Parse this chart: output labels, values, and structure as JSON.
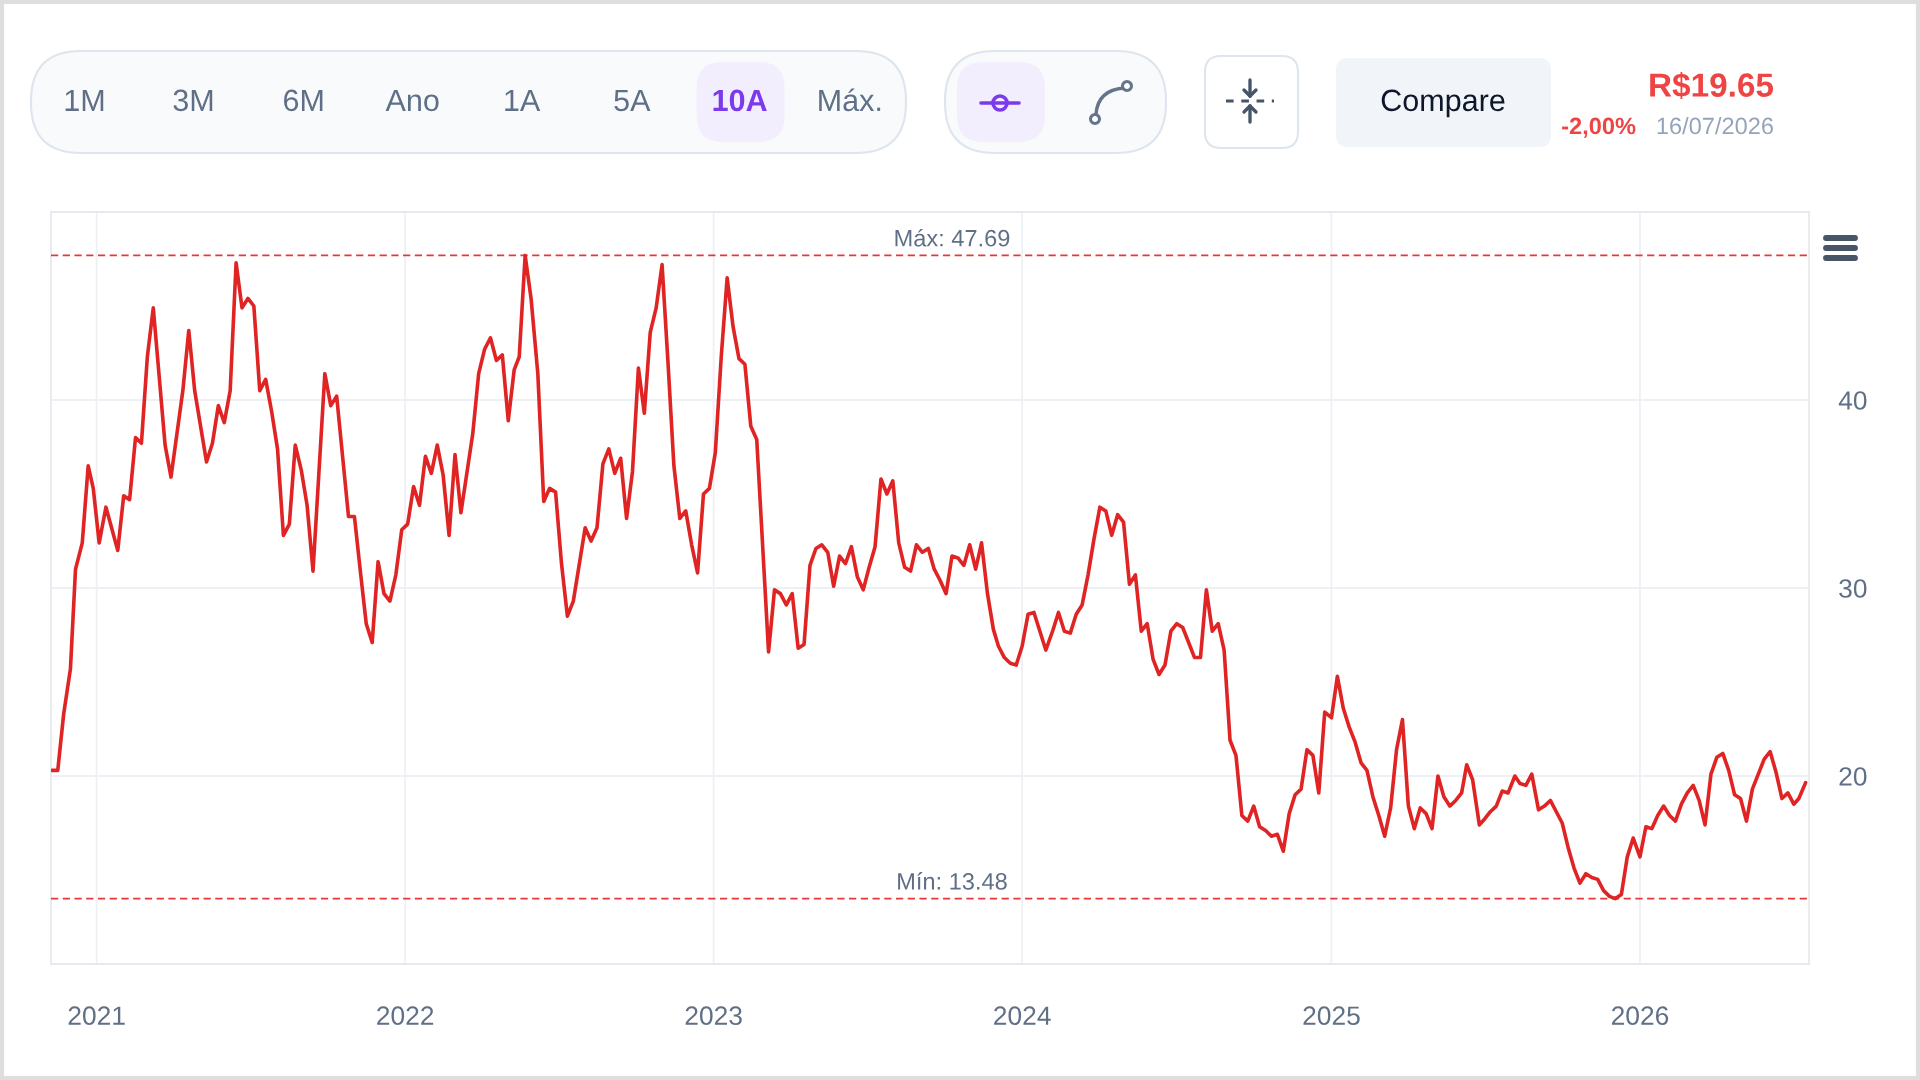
{
  "chart_data": {
    "type": "line",
    "x": [
      "2020-11-09",
      "2020-11-16",
      "2020-11-23",
      "2020-12-01",
      "2020-12-07",
      "2020-12-15",
      "2020-12-22",
      "2020-12-28",
      "2021-01-04",
      "2021-01-12",
      "2021-01-26",
      "2021-02-02",
      "2021-02-09",
      "2021-02-16",
      "2021-02-23",
      "2021-03-02",
      "2021-03-09",
      "2021-03-23",
      "2021-03-30",
      "2021-04-13",
      "2021-04-20",
      "2021-04-27",
      "2021-05-11",
      "2021-05-18",
      "2021-05-25",
      "2021-06-01",
      "2021-06-08",
      "2021-06-15",
      "2021-06-22",
      "2021-06-29",
      "2021-07-06",
      "2021-07-13",
      "2021-07-20",
      "2021-07-27",
      "2021-08-03",
      "2021-08-10",
      "2021-08-17",
      "2021-08-24",
      "2021-08-31",
      "2021-09-07",
      "2021-09-14",
      "2021-09-28",
      "2021-10-05",
      "2021-10-12",
      "2021-10-19",
      "2021-10-26",
      "2021-11-02",
      "2021-11-09",
      "2021-11-16",
      "2021-11-23",
      "2021-11-30",
      "2021-12-07",
      "2021-12-14",
      "2021-12-21",
      "2021-12-28",
      "2022-01-04",
      "2022-01-11",
      "2022-01-18",
      "2022-01-25",
      "2022-02-01",
      "2022-02-08",
      "2022-02-15",
      "2022-02-22",
      "2022-03-01",
      "2022-03-08",
      "2022-03-22",
      "2022-03-29",
      "2022-04-05",
      "2022-04-12",
      "2022-04-19",
      "2022-04-26",
      "2022-05-03",
      "2022-05-10",
      "2022-05-16",
      "2022-05-23",
      "2022-05-30",
      "2022-06-07",
      "2022-06-14",
      "2022-06-21",
      "2022-06-28",
      "2022-07-05",
      "2022-07-12",
      "2022-07-19",
      "2022-08-02",
      "2022-08-09",
      "2022-08-16",
      "2022-08-23",
      "2022-08-30",
      "2022-09-06",
      "2022-09-13",
      "2022-09-20",
      "2022-09-27",
      "2022-10-04",
      "2022-10-11",
      "2022-10-18",
      "2022-10-25",
      "2022-11-01",
      "2022-11-08",
      "2022-11-15",
      "2022-11-22",
      "2022-11-29",
      "2022-12-06",
      "2022-12-13",
      "2022-12-20",
      "2022-12-27",
      "2023-01-03",
      "2023-01-10",
      "2023-01-17",
      "2023-01-24",
      "2023-01-31",
      "2023-02-07",
      "2023-02-14",
      "2023-02-21",
      "2023-03-07",
      "2023-03-14",
      "2023-03-21",
      "2023-03-28",
      "2023-04-04",
      "2023-04-11",
      "2023-04-18",
      "2023-04-25",
      "2023-05-02",
      "2023-05-09",
      "2023-05-16",
      "2023-05-23",
      "2023-05-30",
      "2023-06-06",
      "2023-06-13",
      "2023-06-20",
      "2023-06-27",
      "2023-07-04",
      "2023-07-11",
      "2023-07-18",
      "2023-07-25",
      "2023-08-01",
      "2023-08-08",
      "2023-08-15",
      "2023-08-22",
      "2023-08-29",
      "2023-09-05",
      "2023-09-12",
      "2023-09-19",
      "2023-09-26",
      "2023-10-03",
      "2023-10-10",
      "2023-10-17",
      "2023-10-24",
      "2023-10-31",
      "2023-11-07",
      "2023-11-14",
      "2023-11-21",
      "2023-11-28",
      "2023-12-04",
      "2023-12-11",
      "2023-12-18",
      "2023-12-25",
      "2024-01-01",
      "2024-01-08",
      "2024-01-15",
      "2024-01-22",
      "2024-01-29",
      "2024-02-06",
      "2024-02-13",
      "2024-02-20",
      "2024-02-27",
      "2024-03-05",
      "2024-03-12",
      "2024-03-19",
      "2024-03-26",
      "2024-04-02",
      "2024-04-09",
      "2024-04-16",
      "2024-04-23",
      "2024-04-30",
      "2024-05-07",
      "2024-05-14",
      "2024-05-21",
      "2024-05-28",
      "2024-06-04",
      "2024-06-11",
      "2024-06-18",
      "2024-06-25",
      "2024-07-02",
      "2024-07-09",
      "2024-07-16",
      "2024-07-23",
      "2024-07-30",
      "2024-08-06",
      "2024-08-13",
      "2024-08-20",
      "2024-08-27",
      "2024-09-03",
      "2024-09-10",
      "2024-09-17",
      "2024-09-24",
      "2024-10-01",
      "2024-10-08",
      "2024-10-15",
      "2024-10-22",
      "2024-10-29",
      "2024-11-05",
      "2024-11-12",
      "2024-11-19",
      "2024-11-26",
      "2024-12-03",
      "2024-12-10",
      "2024-12-17",
      "2024-12-24",
      "2025-01-01",
      "2025-01-08",
      "2025-01-15",
      "2025-01-22",
      "2025-01-29",
      "2025-02-05",
      "2025-02-12",
      "2025-02-19",
      "2025-02-26",
      "2025-03-05",
      "2025-03-12",
      "2025-03-19",
      "2025-03-26",
      "2025-04-02",
      "2025-04-09",
      "2025-04-16",
      "2025-04-23",
      "2025-04-30",
      "2025-05-07",
      "2025-05-14",
      "2025-05-21",
      "2025-05-28",
      "2025-06-04",
      "2025-06-10",
      "2025-06-17",
      "2025-06-25",
      "2025-07-01",
      "2025-07-08",
      "2025-07-15",
      "2025-07-22",
      "2025-07-29",
      "2025-08-06",
      "2025-08-12",
      "2025-08-19",
      "2025-08-26",
      "2025-09-03",
      "2025-09-10",
      "2025-09-17",
      "2025-09-24",
      "2025-10-01",
      "2025-10-08",
      "2025-10-15",
      "2025-10-22",
      "2025-10-29",
      "2025-11-05",
      "2025-11-12",
      "2025-11-19",
      "2025-11-26",
      "2025-12-03",
      "2025-12-10",
      "2025-12-17",
      "2025-12-24",
      "2026-01-01",
      "2026-01-08",
      "2026-01-15",
      "2026-01-22",
      "2026-01-29",
      "2026-02-05",
      "2026-02-12",
      "2026-02-19",
      "2026-02-26",
      "2026-03-05",
      "2026-03-12",
      "2026-03-19",
      "2026-03-26",
      "2026-04-02",
      "2026-04-09",
      "2026-04-16",
      "2026-04-23",
      "2026-04-30",
      "2026-05-07",
      "2026-05-14",
      "2026-05-21",
      "2026-05-28",
      "2026-06-04",
      "2026-06-11",
      "2026-06-18",
      "2026-06-25",
      "2026-07-02",
      "2026-07-08",
      "2026-07-16"
    ],
    "series": [
      {
        "color": "#e02424",
        "values": [
          20.3,
          20.3,
          23.3,
          25.7,
          31.0,
          32.4,
          36.5,
          35.3,
          32.4,
          34.3,
          32.0,
          34.9,
          34.7,
          38.0,
          37.7,
          42.3,
          44.9,
          37.6,
          35.9,
          40.5,
          43.7,
          40.5,
          36.7,
          37.7,
          39.7,
          38.8,
          40.5,
          47.3,
          44.9,
          45.4,
          45.0,
          40.5,
          41.1,
          39.4,
          37.4,
          32.8,
          33.4,
          37.6,
          36.3,
          34.4,
          30.9,
          41.4,
          39.7,
          40.2,
          37.0,
          33.8,
          33.8,
          30.9,
          28.1,
          27.1,
          31.4,
          29.7,
          29.3,
          30.7,
          33.1,
          33.4,
          35.4,
          34.4,
          37.0,
          36.1,
          37.6,
          36.0,
          32.8,
          37.1,
          34.0,
          38.2,
          41.4,
          42.7,
          43.3,
          42.1,
          42.4,
          38.9,
          41.6,
          42.3,
          47.69,
          45.4,
          41.4,
          34.6,
          35.3,
          35.1,
          31.3,
          28.5,
          29.3,
          33.2,
          32.5,
          33.2,
          36.6,
          37.4,
          36.1,
          36.9,
          33.7,
          36.2,
          41.7,
          39.3,
          43.6,
          44.9,
          47.2,
          42.0,
          36.5,
          33.7,
          34.1,
          32.3,
          30.8,
          35.0,
          35.3,
          37.2,
          42.3,
          46.5,
          43.9,
          42.2,
          41.9,
          38.6,
          37.9,
          26.6,
          29.9,
          29.7,
          29.1,
          29.7,
          26.8,
          27.0,
          31.2,
          32.1,
          32.3,
          31.9,
          30.1,
          31.7,
          31.3,
          32.2,
          30.6,
          29.9,
          31.1,
          32.2,
          35.8,
          35.0,
          35.7,
          32.4,
          31.1,
          30.9,
          32.3,
          31.9,
          32.1,
          31.0,
          30.4,
          29.7,
          31.7,
          31.6,
          31.2,
          32.3,
          31.0,
          32.4,
          29.7,
          27.8,
          26.9,
          26.3,
          26.0,
          25.9,
          26.9,
          28.6,
          28.7,
          27.7,
          26.7,
          27.7,
          28.7,
          27.7,
          27.6,
          28.6,
          29.1,
          30.7,
          32.6,
          34.3,
          34.1,
          32.8,
          33.9,
          33.5,
          30.2,
          30.7,
          27.7,
          28.1,
          26.2,
          25.4,
          25.9,
          27.7,
          28.1,
          27.9,
          27.1,
          26.3,
          26.3,
          29.9,
          27.7,
          28.1,
          26.7,
          21.9,
          21.1,
          17.9,
          17.6,
          18.4,
          17.3,
          17.1,
          16.8,
          16.9,
          16.0,
          18.0,
          19.0,
          19.3,
          21.4,
          21.1,
          19.1,
          23.4,
          23.1,
          25.3,
          23.6,
          22.6,
          21.8,
          20.7,
          20.3,
          18.9,
          17.9,
          16.8,
          18.3,
          21.4,
          23.0,
          18.4,
          17.2,
          18.3,
          18.0,
          17.2,
          20.0,
          18.9,
          18.4,
          18.7,
          19.1,
          20.6,
          19.8,
          17.4,
          17.7,
          18.1,
          18.4,
          19.2,
          19.1,
          20.0,
          19.6,
          19.5,
          20.1,
          18.2,
          18.4,
          18.7,
          18.1,
          17.5,
          16.2,
          15.1,
          14.3,
          14.8,
          14.6,
          14.5,
          13.9,
          13.6,
          13.48,
          13.7,
          15.7,
          16.7,
          15.7,
          17.3,
          17.2,
          17.9,
          18.4,
          17.9,
          17.6,
          18.5,
          19.1,
          19.5,
          18.7,
          17.4,
          20.1,
          21.0,
          21.2,
          20.3,
          19.0,
          18.8,
          17.6,
          19.3,
          20.1,
          20.9,
          21.3,
          20.2,
          18.8,
          19.1,
          18.5,
          18.8,
          19.65
        ]
      }
    ],
    "xlim": [
      "2020-11-08",
      "2026-07-20"
    ],
    "xticks": [
      "2021",
      "2022",
      "2023",
      "2024",
      "2025",
      "2026"
    ],
    "ylim": [
      10,
      50
    ],
    "yticks": [
      20,
      30,
      40
    ],
    "grid": true,
    "line_style": "solid",
    "ref_lines": [
      {
        "axis": "y",
        "value": 47.69,
        "label": "Máx: 47.69",
        "color": "#e5383b",
        "line_style": "dashed"
      },
      {
        "axis": "y",
        "value": 13.48,
        "label": "Mín: 13.48",
        "color": "#e5383b",
        "line_style": "dashed"
      }
    ],
    "annotations": [
      "1M",
      "3M",
      "6M",
      "Ano",
      "1A",
      "5A",
      "10A",
      "Máx.",
      "Compare",
      "R$19.65",
      "-2,00%",
      "16/07/2026"
    ]
  }
}
